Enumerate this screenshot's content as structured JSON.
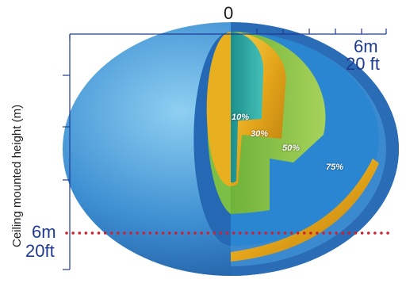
{
  "axis": {
    "top_origin": "0",
    "top_extent_m": "6m",
    "top_extent_ft": "20 ft",
    "left_extent_m": "6m",
    "left_extent_ft": "20ft",
    "ylabel": "Ceiling mounted height (m)"
  },
  "coverage_zones": [
    {
      "label": "10%",
      "color": "#2ab0a8"
    },
    {
      "label": "30%",
      "color": "#f2c21b"
    },
    {
      "label": "50%",
      "color": "#8cc63f"
    },
    {
      "label": "75%",
      "color": "#2a86d1"
    }
  ],
  "colors": {
    "axis": "#1f3a93",
    "dotted_line": "#d01f2f",
    "outer_shell": "#2d6eb8"
  }
}
